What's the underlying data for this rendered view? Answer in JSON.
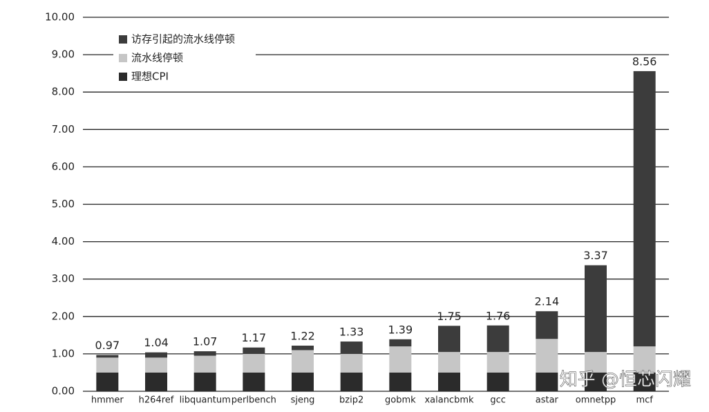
{
  "chart_data": {
    "type": "stacked-bar",
    "categories": [
      "hmmer",
      "h264ref",
      "libquantum",
      "perlbench",
      "sjeng",
      "bzip2",
      "gobmk",
      "xalancbmk",
      "gcc",
      "astar",
      "omnetpp",
      "mcf"
    ],
    "series": [
      {
        "name": "理想CPI",
        "color": "#2b2b2b",
        "values": [
          0.5,
          0.5,
          0.5,
          0.5,
          0.5,
          0.5,
          0.5,
          0.5,
          0.5,
          0.5,
          0.5,
          0.5
        ]
      },
      {
        "name": "流水线停顿",
        "color": "#c6c6c6",
        "values": [
          0.4,
          0.4,
          0.45,
          0.5,
          0.6,
          0.5,
          0.7,
          0.55,
          0.55,
          0.9,
          0.55,
          0.7
        ]
      },
      {
        "name": "访存引起的流水线停顿",
        "color": "#3c3c3c",
        "values": [
          0.07,
          0.14,
          0.12,
          0.17,
          0.12,
          0.33,
          0.19,
          0.7,
          0.71,
          0.74,
          2.32,
          7.36
        ]
      }
    ],
    "totals": [
      0.97,
      1.04,
      1.07,
      1.17,
      1.22,
      1.33,
      1.39,
      1.75,
      1.76,
      2.14,
      3.37,
      8.56
    ],
    "ylim": [
      0,
      10
    ],
    "yticks": [
      {
        "value": 0,
        "label": "0.00"
      },
      {
        "value": 1,
        "label": "1.00"
      },
      {
        "value": 2,
        "label": "2.00"
      },
      {
        "value": 3,
        "label": "3.00"
      },
      {
        "value": 4,
        "label": "4.00"
      },
      {
        "value": 5,
        "label": "5.00"
      },
      {
        "value": 6,
        "label": "6.00"
      },
      {
        "value": 7,
        "label": "7.00"
      },
      {
        "value": 8,
        "label": "8.00"
      },
      {
        "value": 9,
        "label": "9.00"
      },
      {
        "value": 10,
        "label": "10.00"
      }
    ],
    "grid": true,
    "legend": "top-left",
    "watermark": "知乎 @恒芯闪耀"
  }
}
